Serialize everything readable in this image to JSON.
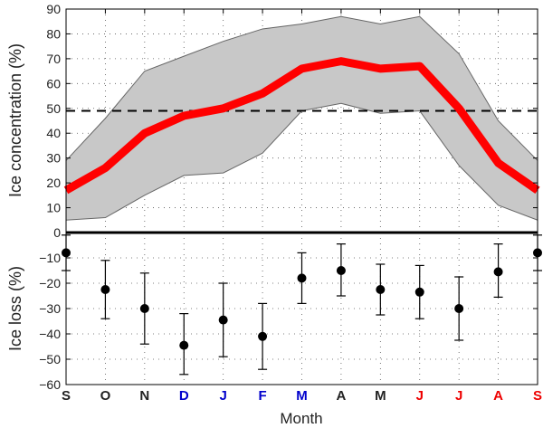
{
  "xlabel": "Month",
  "months": [
    "S",
    "O",
    "N",
    "D",
    "J",
    "F",
    "M",
    "A",
    "M",
    "J",
    "J",
    "A",
    "S"
  ],
  "month_colors": [
    "#222222",
    "#222222",
    "#222222",
    "#0000cc",
    "#0000cc",
    "#0000cc",
    "#0000cc",
    "#222222",
    "#222222",
    "#ee0000",
    "#ee0000",
    "#ee0000",
    "#ee0000"
  ],
  "colors": {
    "line": "#ff0000",
    "band_fill": "#c8c8c8",
    "band_edge": "#666666",
    "threshold": "#000000",
    "points": "#000000"
  },
  "chart_data": [
    {
      "type": "area",
      "ylabel": "Ice concentration (%)",
      "ylim": [
        0,
        90
      ],
      "yticks": [
        0,
        10,
        20,
        30,
        40,
        50,
        60,
        70,
        80,
        90
      ],
      "grid": true,
      "categories": [
        "S",
        "O",
        "N",
        "D",
        "J",
        "F",
        "M",
        "A",
        "M",
        "J",
        "J",
        "A",
        "S"
      ],
      "series": [
        {
          "role": "mean",
          "values": [
            17,
            26,
            40,
            47,
            50,
            56,
            66,
            69,
            66,
            67,
            50,
            28,
            17
          ]
        },
        {
          "role": "upper",
          "values": [
            29,
            46,
            65,
            71,
            77,
            82,
            84,
            87,
            84,
            87,
            72,
            45,
            29
          ]
        },
        {
          "role": "lower",
          "values": [
            5,
            6,
            15,
            23,
            24,
            32,
            49,
            52,
            48,
            49,
            27,
            11,
            5
          ]
        }
      ],
      "threshold": 49
    },
    {
      "type": "scatter",
      "ylabel": "Ice loss (%)",
      "ylim": [
        -60,
        0
      ],
      "yticks": [
        0,
        -10,
        -20,
        -30,
        -40,
        -50,
        -60
      ],
      "grid": true,
      "categories": [
        "S",
        "O",
        "N",
        "D",
        "J",
        "F",
        "M",
        "A",
        "M",
        "J",
        "J",
        "A",
        "S"
      ],
      "values": [
        -8,
        -22.5,
        -30,
        -44.5,
        -34.5,
        -41,
        -18,
        -15,
        -22.5,
        -23.5,
        -30,
        -15.5,
        -8
      ],
      "err_low": [
        -15,
        -34,
        -44,
        -56,
        -49,
        -54,
        -28,
        -25,
        -32.5,
        -34,
        -42.5,
        -25.5,
        -15
      ],
      "err_high": [
        -1,
        -11,
        -16,
        -32,
        -20,
        -28,
        -8,
        -4.5,
        -12.5,
        -13,
        -17.5,
        -4.5,
        -1
      ]
    }
  ]
}
